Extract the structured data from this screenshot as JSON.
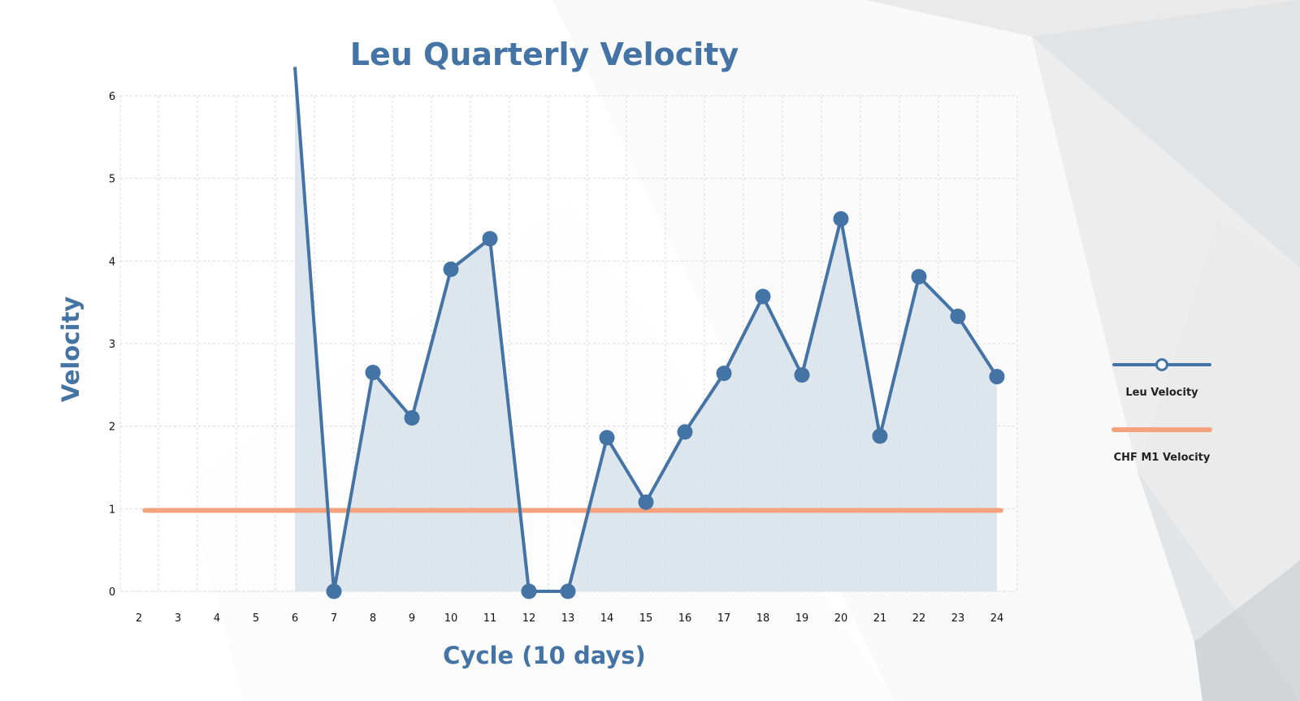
{
  "colors": {
    "primary": "#4473a5",
    "area_fill": "#d7e1ea",
    "reference": "#f5a27f",
    "grid": "#d9d9d9",
    "background_shade": "#c4c6c8"
  },
  "chart_data": {
    "type": "line",
    "title": "Leu Quarterly Velocity",
    "xlabel": "Cycle (10 days)",
    "ylabel": "Velocity",
    "x": [
      2,
      3,
      4,
      5,
      6,
      7,
      8,
      9,
      10,
      11,
      12,
      13,
      14,
      15,
      16,
      17,
      18,
      19,
      20,
      21,
      22,
      23,
      24
    ],
    "xlim": [
      2,
      24
    ],
    "ylim": [
      0,
      6
    ],
    "y_ticks": [
      0,
      1,
      2,
      3,
      4,
      5,
      6
    ],
    "grid": true,
    "legend_position": "right",
    "series": [
      {
        "name": "Leu Velocity",
        "style": "line-with-markers-area",
        "color": "#4473a5",
        "x": [
          6,
          7,
          8,
          9,
          10,
          11,
          12,
          13,
          14,
          15,
          16,
          17,
          18,
          19,
          20,
          21,
          22,
          23,
          24
        ],
        "values": [
          6.35,
          0,
          2.65,
          2.1,
          3.9,
          4.27,
          0,
          0,
          1.86,
          1.08,
          1.93,
          2.64,
          3.57,
          2.62,
          4.51,
          1.88,
          3.81,
          3.33,
          2.6
        ],
        "markers_from_x": 7
      },
      {
        "name": "CHF M1 Velocity",
        "style": "line",
        "color": "#f5a27f",
        "x": [
          2.15,
          24.1
        ],
        "values": [
          0.98,
          0.98
        ]
      }
    ]
  }
}
